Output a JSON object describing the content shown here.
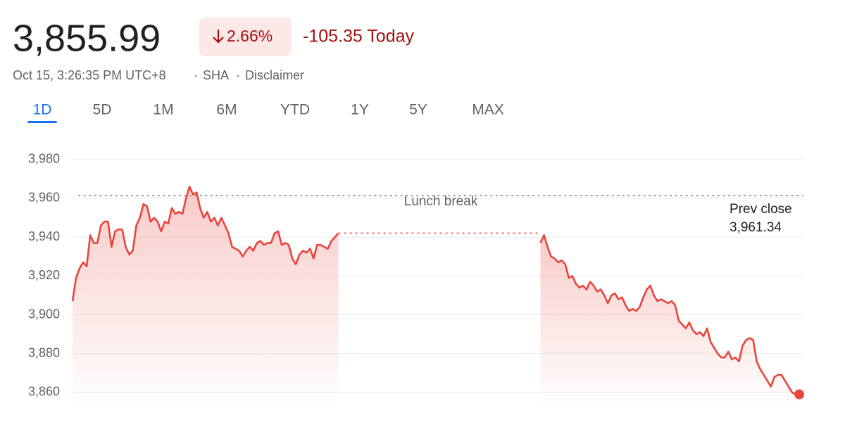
{
  "header": {
    "price": "3,855.99",
    "change_percent": "2.66%",
    "change_today": "-105.35 Today",
    "timestamp": "Oct 15, 3:26:35 PM UTC+8",
    "exchange": "SHA",
    "disclaimer": "Disclaimer"
  },
  "tabs": {
    "items": [
      "1D",
      "5D",
      "1M",
      "6M",
      "YTD",
      "1Y",
      "5Y",
      "MAX"
    ],
    "selected": 0
  },
  "chart_data": {
    "type": "line",
    "color": "#e8453c",
    "grid": true,
    "ylim": [
      3852,
      3985
    ],
    "yticks": [
      {
        "value": 3860,
        "label": "3,860"
      },
      {
        "value": 3880,
        "label": "3,880"
      },
      {
        "value": 3900,
        "label": "3,900"
      },
      {
        "value": 3920,
        "label": "3,920"
      },
      {
        "value": 3940,
        "label": "3,940"
      },
      {
        "value": 3960,
        "label": "3,960"
      },
      {
        "value": 3980,
        "label": "3,980"
      }
    ],
    "annotation": "Lunch break",
    "prev_close": {
      "label": "Prev close",
      "value": 3961.34,
      "value_label": "3,961.34"
    },
    "values": [
      3907,
      3919,
      3924,
      3927,
      3925,
      3941,
      3937,
      3937,
      3946,
      3948,
      3948,
      3935,
      3943,
      3944,
      3944,
      3935,
      3931,
      3933,
      3946,
      3950,
      3957,
      3956,
      3948,
      3950,
      3948,
      3943,
      3948,
      3947,
      3955,
      3952,
      3953,
      3952,
      3960,
      3966,
      3962,
      3963,
      3955,
      3950,
      3953,
      3948,
      3950,
      3946,
      3950,
      3946,
      3942,
      3935,
      3934,
      3933,
      3930,
      3933,
      3935,
      3933,
      3937,
      3938,
      3936,
      3937,
      3937,
      3942,
      3943,
      3936,
      3937,
      3936,
      3929,
      3926,
      3931,
      3933,
      3932,
      3934,
      3929,
      3936,
      3936,
      3935,
      3934,
      3938,
      3940,
      3942,
      null,
      null,
      null,
      null,
      null,
      null,
      null,
      null,
      null,
      null,
      null,
      null,
      null,
      null,
      null,
      null,
      null,
      null,
      null,
      null,
      null,
      null,
      null,
      null,
      null,
      null,
      null,
      null,
      null,
      null,
      null,
      null,
      null,
      null,
      null,
      null,
      null,
      null,
      null,
      null,
      null,
      null,
      null,
      null,
      null,
      null,
      null,
      null,
      null,
      null,
      null,
      null,
      null,
      null,
      null,
      null,
      3937,
      3941,
      3935,
      3930,
      3929,
      3927,
      3928,
      3926,
      3919,
      3920,
      3916,
      3914,
      3915,
      3913,
      3917,
      3915,
      3912,
      3913,
      3910,
      3906,
      3910,
      3911,
      3908,
      3909,
      3905,
      3902,
      3903,
      3902,
      3904,
      3909,
      3913,
      3915,
      3910,
      3907,
      3908,
      3907,
      3906,
      3907,
      3905,
      3897,
      3895,
      3893,
      3896,
      3892,
      3890,
      3891,
      3889,
      3893,
      3886,
      3883,
      3880,
      3878,
      3878,
      3881,
      3877,
      3878,
      3876,
      3884,
      3887,
      3888,
      3887,
      3876,
      3872,
      3869,
      3866,
      3863,
      3868,
      3869,
      3869,
      3866,
      3863,
      3860,
      3859,
      3859
    ]
  }
}
